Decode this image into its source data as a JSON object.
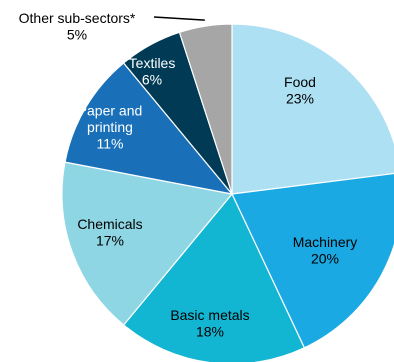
{
  "chart_data": {
    "type": "pie",
    "title": "",
    "slices": [
      {
        "label": "Food",
        "percent_label": "23%",
        "value": 23,
        "color": "#aee0f4"
      },
      {
        "label": "Machinery",
        "percent_label": "20%",
        "value": 20,
        "color": "#1aa9e2"
      },
      {
        "label": "Basic metals",
        "percent_label": "18%",
        "value": 18,
        "color": "#13b6d2"
      },
      {
        "label": "Chemicals",
        "percent_label": "17%",
        "value": 17,
        "color": "#8ed6e4"
      },
      {
        "label": "Paper and printing",
        "percent_label": "11%",
        "value": 11,
        "color": "#1a70b8"
      },
      {
        "label": "Textiles",
        "percent_label": "6%",
        "value": 6,
        "color": "#003a55"
      },
      {
        "label": "Other sub-sectors*",
        "percent_label": "5%",
        "value": 5,
        "color": "#a6a6a6"
      }
    ],
    "start": "12 o'clock",
    "direction": "clockwise",
    "legend": "none"
  }
}
